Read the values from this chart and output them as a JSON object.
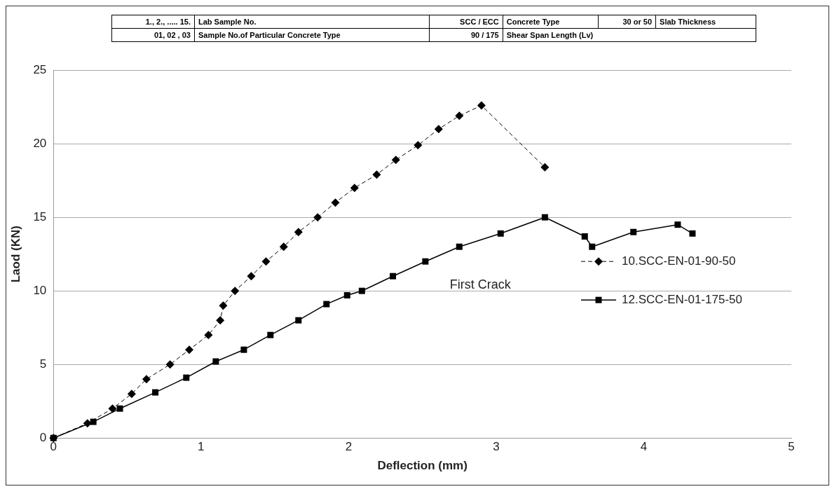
{
  "chart_data": {
    "type": "line",
    "xlabel": "Deflection (mm)",
    "ylabel": "Laod (KN)",
    "xlim": [
      0,
      5
    ],
    "xticks": [
      0,
      1,
      2,
      3,
      4,
      5
    ],
    "ylim": [
      0,
      25
    ],
    "yticks": [
      0,
      5,
      10,
      15,
      20,
      25
    ],
    "grid": "y",
    "legend": "right",
    "series": [
      {
        "name": "10.SCC-EN-01-90-50",
        "color": "#000000",
        "marker": "diamond",
        "line_style": "dashed",
        "x": [
          0,
          0.23,
          0.4,
          0.53,
          0.63,
          0.79,
          0.92,
          1.05,
          1.13,
          1.15,
          1.23,
          1.34,
          1.44,
          1.56,
          1.66,
          1.79,
          1.91,
          2.04,
          2.19,
          2.32,
          2.47,
          2.61,
          2.75,
          2.9,
          3.33
        ],
        "values": [
          0,
          1,
          2,
          3,
          4,
          5,
          6,
          7,
          8,
          9,
          10,
          11,
          12,
          13,
          14,
          15,
          16,
          17,
          17.9,
          18.9,
          19.9,
          21,
          21.9,
          22.6,
          18.4
        ]
      },
      {
        "name": "12.SCC-EN-01-175-50",
        "color": "#000000",
        "marker": "square",
        "line_style": "solid",
        "x": [
          0,
          0.27,
          0.45,
          0.69,
          0.9,
          1.1,
          1.29,
          1.47,
          1.66,
          1.85,
          1.99,
          2.09,
          2.3,
          2.52,
          2.75,
          3.03,
          3.33,
          3.6,
          3.65,
          3.93,
          4.23,
          4.33
        ],
        "values": [
          0,
          1.1,
          2,
          3.1,
          4.1,
          5.2,
          6,
          7,
          8,
          9.1,
          9.7,
          10,
          11,
          12,
          13,
          13.9,
          15,
          13.7,
          13,
          14,
          14.5,
          13.9
        ]
      }
    ],
    "annotations": [
      "1., 2., ..... 15.",
      "Lab Sample No.",
      "SCC / ECC",
      "Concrete Type",
      "30 or 50",
      "Slab Thickness",
      "01, 02 , 03",
      "Sample No.of Particular Concrete Type",
      "90 / 175",
      "Shear Span Length (Lv)",
      {
        "text": "First Crack",
        "x": 2.75,
        "y": 13
      }
    ]
  }
}
